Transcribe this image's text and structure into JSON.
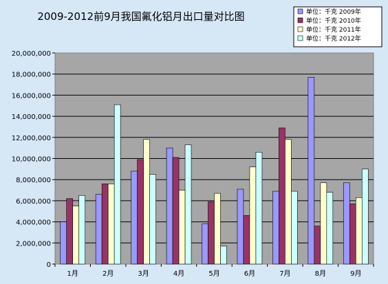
{
  "chart_data": {
    "type": "bar",
    "title": "2009-2012前9月我国氟化铝月出口量对比图",
    "categories": [
      "1月",
      "2月",
      "3月",
      "4月",
      "5月",
      "6月",
      "7月",
      "8月",
      "9月"
    ],
    "ylim": [
      0,
      20000000
    ],
    "yticks": [
      "0",
      "2,000,000",
      "4,000,000",
      "6,000,000",
      "8,000,000",
      "10,000,000",
      "12,000,000",
      "14,000,000",
      "16,000,000",
      "18,000,000",
      "20,000,000"
    ],
    "grid": true,
    "legend_position": "top-right",
    "series": [
      {
        "name": "单位：千克 2009年",
        "color": "#9999ff",
        "values": [
          4000000,
          6600000,
          8800000,
          11000000,
          3800000,
          7100000,
          6900000,
          17700000,
          7700000
        ]
      },
      {
        "name": "单位：千克 2010年",
        "color": "#993366",
        "values": [
          6200000,
          7600000,
          9900000,
          10100000,
          5900000,
          4600000,
          12900000,
          3600000,
          5700000
        ]
      },
      {
        "name": "单位：千克 2011年",
        "color": "#ffffcc",
        "values": [
          5500000,
          7600000,
          11800000,
          7000000,
          6700000,
          9200000,
          11800000,
          7700000,
          6300000
        ]
      },
      {
        "name": "单位：千克 2012年",
        "color": "#ccffff",
        "values": [
          6500000,
          15100000,
          8500000,
          11300000,
          1700000,
          10600000,
          6900000,
          6800000,
          9000000
        ]
      }
    ]
  }
}
